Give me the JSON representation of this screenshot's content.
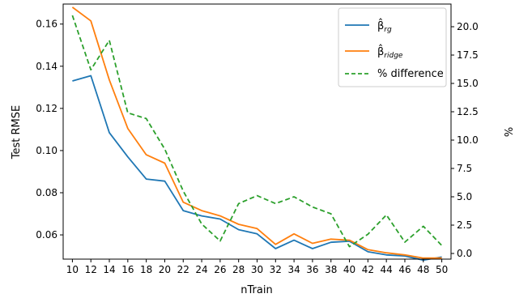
{
  "chart_data": {
    "type": "line",
    "xlabel": "nTrain",
    "ylabel_left": "Test RMSE",
    "ylabel_right": "%",
    "x": [
      10,
      12,
      14,
      16,
      18,
      20,
      22,
      24,
      26,
      28,
      30,
      32,
      34,
      36,
      38,
      40,
      42,
      44,
      46,
      48,
      50
    ],
    "xticks": [
      "10",
      "12",
      "14",
      "16",
      "18",
      "20",
      "22",
      "24",
      "26",
      "28",
      "30",
      "32",
      "34",
      "36",
      "38",
      "40",
      "42",
      "44",
      "46",
      "48",
      "50"
    ],
    "yticks_left": [
      "0.06",
      "0.08",
      "0.10",
      "0.12",
      "0.14",
      "0.16"
    ],
    "yticks_right": [
      "0.0",
      "2.5",
      "5.0",
      "7.5",
      "10.0",
      "12.5",
      "15.0",
      "17.5",
      "20.0"
    ],
    "ylim_left": [
      0.0485,
      0.1695
    ],
    "ylim_right": [
      -0.5,
      22.0
    ],
    "grid": false,
    "legend_position": "top-right",
    "series": [
      {
        "name": "β̂_rg",
        "axis": "left",
        "color": "#1f77b4",
        "style": "solid",
        "values": [
          0.133,
          0.1355,
          0.1085,
          0.097,
          0.0865,
          0.0855,
          0.0715,
          0.069,
          0.0675,
          0.0625,
          0.0605,
          0.0535,
          0.0575,
          0.0535,
          0.0565,
          0.057,
          0.052,
          0.0505,
          0.05,
          0.048,
          0.0495
        ]
      },
      {
        "name": "β̂_ridge",
        "axis": "left",
        "color": "#ff7f0e",
        "style": "solid",
        "values": [
          0.168,
          0.1615,
          0.1335,
          0.1105,
          0.098,
          0.094,
          0.0755,
          0.0715,
          0.069,
          0.065,
          0.063,
          0.0555,
          0.0605,
          0.056,
          0.058,
          0.0575,
          0.053,
          0.0515,
          0.0505,
          0.049,
          0.049
        ]
      },
      {
        "name": "% difference",
        "axis": "right",
        "color": "#2ca02c",
        "style": "dashed",
        "values": [
          21.0,
          16.2,
          18.8,
          12.4,
          11.9,
          9.2,
          5.5,
          2.6,
          1.1,
          4.4,
          5.1,
          4.4,
          5.0,
          4.1,
          3.5,
          0.6,
          1.7,
          3.4,
          1.0,
          2.4,
          0.7
        ]
      }
    ]
  }
}
